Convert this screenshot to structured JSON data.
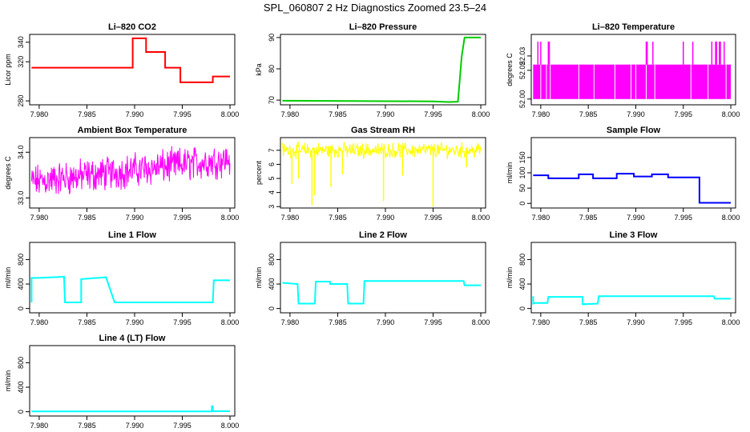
{
  "figure_title": "SPL_060807  2 Hz Diagnostics Zoomed 23.5–24",
  "colors": {
    "red": "#ff0000",
    "green": "#00cc00",
    "magenta": "#ff00ff",
    "yellow": "#ffff00",
    "blue": "#0000ff",
    "cyan": "#00ffff",
    "axis": "#000000"
  },
  "chart_data": [
    {
      "type": "line",
      "title": "Li–820 CO2",
      "ylabel": "Licor ppm",
      "xlim": [
        7.979,
        8.0005
      ],
      "ylim": [
        276,
        348
      ],
      "xticks": [
        "7.980",
        "7.985",
        "7.990",
        "7.995",
        "8.000"
      ],
      "yticks": [
        "280",
        "320",
        "340"
      ],
      "ytick_values": [
        280,
        320,
        340
      ],
      "color_key": "red",
      "x": [
        7.9792,
        7.9898,
        7.9898,
        7.9912,
        7.9912,
        7.9932,
        7.9932,
        7.9948,
        7.9948,
        7.9982,
        7.9982,
        8.0
      ],
      "y": [
        314,
        314,
        344,
        344,
        330,
        330,
        314,
        314,
        299,
        299,
        305,
        305
      ]
    },
    {
      "type": "line",
      "title": "Li–820 Pressure",
      "ylabel": "kPa",
      "xlim": [
        7.979,
        8.0005
      ],
      "ylim": [
        68.5,
        91
      ],
      "xticks": [
        "7.980",
        "7.985",
        "7.990",
        "7.995",
        "8.000"
      ],
      "yticks": [
        "70",
        "80",
        "90"
      ],
      "ytick_values": [
        70,
        80,
        90
      ],
      "color_key": "green",
      "x": [
        7.9792,
        7.995,
        7.9966,
        7.9976,
        7.998,
        7.9983,
        8.0
      ],
      "y": [
        69.8,
        69.6,
        69.4,
        69.5,
        84,
        90,
        90
      ]
    },
    {
      "type": "line",
      "title": "Li–820 Temperature",
      "ylabel": "degrees C",
      "xlim": [
        7.979,
        8.0005
      ],
      "ylim": [
        51.996,
        52.045
      ],
      "xticks": [
        "7.980",
        "7.985",
        "7.990",
        "7.995",
        "8.000"
      ],
      "yticks": [
        "52.00",
        "52.02",
        "52.03"
      ],
      "ytick_values": [
        52.0,
        52.02,
        52.03
      ],
      "color_key": "magenta",
      "levels": [
        52.0,
        52.024,
        52.04
      ],
      "base_x": [
        7.9792,
        8.0
      ],
      "base_y": [
        52.024,
        52.024
      ],
      "spikes_high_x": [
        7.9797,
        7.98,
        7.9808,
        7.9809,
        7.9911,
        7.9912,
        7.9918,
        7.995,
        7.996,
        7.998,
        7.9984,
        7.9985,
        7.9988,
        7.9989,
        7.9993
      ],
      "dropouts_x": [
        7.98,
        7.9806,
        7.981,
        7.984,
        7.9856,
        7.9878,
        7.9895,
        7.99,
        7.9911,
        7.992,
        7.9958,
        7.9976,
        7.9995
      ],
      "spikes_low_x": [
        7.9804,
        7.9843,
        7.9852,
        7.986,
        7.988,
        7.9903,
        7.993,
        7.995,
        7.9965,
        7.9972,
        7.9987,
        7.9997
      ]
    },
    {
      "type": "line",
      "title": "Ambient Box Temperature",
      "ylabel": "degrees C",
      "xlim": [
        7.979,
        8.0005
      ],
      "ylim": [
        32.78,
        34.32
      ],
      "xticks": [
        "7.980",
        "7.985",
        "7.990",
        "7.995",
        "8.000"
      ],
      "yticks": [
        "33.0",
        "34.0"
      ],
      "ytick_values": [
        33.0,
        34.0
      ],
      "color_key": "magenta",
      "trend_x": [
        7.9792,
        8.0
      ],
      "trend_y": [
        33.35,
        33.85
      ],
      "spread": [
        33.0,
        34.25
      ]
    },
    {
      "type": "line",
      "title": "Gas Stream RH",
      "ylabel": "percent",
      "xlim": [
        7.979,
        8.0005
      ],
      "ylim": [
        2.9,
        7.9
      ],
      "xticks": [
        "7.980",
        "7.985",
        "7.990",
        "7.995",
        "8.000"
      ],
      "yticks": [
        "3",
        "4",
        "5",
        "6",
        "7"
      ],
      "ytick_values": [
        3,
        4,
        5,
        6,
        7
      ],
      "color_key": "yellow",
      "mean": 7.0,
      "spread": [
        6.3,
        7.6
      ],
      "dips_x": [
        7.9802,
        7.9809,
        7.9823,
        7.9826,
        7.9843,
        7.9855,
        7.9898,
        7.9918,
        7.995,
        7.9985
      ],
      "dips_y": [
        4.6,
        5.0,
        3.1,
        3.8,
        4.4,
        5.3,
        3.4,
        5.2,
        3.0,
        5.8
      ]
    },
    {
      "type": "line",
      "title": "Sample Flow",
      "ylabel": "ml/min",
      "xlim": [
        7.979,
        8.0005
      ],
      "ylim": [
        -15,
        215
      ],
      "xticks": [
        "7.980",
        "7.985",
        "7.990",
        "7.995",
        "8.000"
      ],
      "yticks": [
        "0",
        "50",
        "100",
        "150"
      ],
      "ytick_values": [
        0,
        50,
        100,
        150
      ],
      "color_key": "blue",
      "x": [
        7.9792,
        7.9808,
        7.9808,
        7.984,
        7.984,
        7.9855,
        7.9855,
        7.988,
        7.988,
        7.9898,
        7.9898,
        7.9917,
        7.9917,
        7.9934,
        7.9934,
        7.9967,
        7.9967,
        8.0
      ],
      "y": [
        92,
        92,
        82,
        82,
        95,
        95,
        82,
        82,
        97,
        97,
        88,
        88,
        95,
        95,
        85,
        85,
        2,
        2
      ]
    },
    {
      "type": "line",
      "title": "Line 1 Flow",
      "ylabel": "ml/min",
      "xlim": [
        7.979,
        8.0005
      ],
      "ylim": [
        -70,
        1080
      ],
      "xticks": [
        "7.980",
        "7.985",
        "7.990",
        "7.995",
        "8.000"
      ],
      "yticks": [
        "0",
        "400",
        "800"
      ],
      "ytick_values": [
        0,
        400,
        800
      ],
      "color_key": "cyan",
      "x": [
        7.9792,
        7.9792,
        7.98,
        7.9826,
        7.9827,
        7.9844,
        7.9844,
        7.987,
        7.9879,
        7.9982,
        7.9983,
        8.0
      ],
      "y": [
        100,
        500,
        500,
        520,
        100,
        100,
        480,
        510,
        100,
        100,
        460,
        460
      ]
    },
    {
      "type": "line",
      "title": "Line 2 Flow",
      "ylabel": "ml/min",
      "xlim": [
        7.979,
        8.0005
      ],
      "ylim": [
        -70,
        1080
      ],
      "xticks": [
        "7.980",
        "7.985",
        "7.990",
        "7.995",
        "8.000"
      ],
      "yticks": [
        "0",
        "400",
        "800"
      ],
      "ytick_values": [
        0,
        400,
        800
      ],
      "color_key": "cyan",
      "x": [
        7.9792,
        7.9808,
        7.9809,
        7.9826,
        7.9827,
        7.9842,
        7.9842,
        7.986,
        7.9861,
        7.9877,
        7.9878,
        7.9982,
        7.9983,
        8.0
      ],
      "y": [
        420,
        400,
        80,
        80,
        440,
        440,
        400,
        400,
        80,
        80,
        450,
        450,
        380,
        380
      ]
    },
    {
      "type": "line",
      "title": "Line 3 Flow",
      "ylabel": "ml/min",
      "xlim": [
        7.979,
        8.0005
      ],
      "ylim": [
        -70,
        1080
      ],
      "xticks": [
        "7.980",
        "7.985",
        "7.990",
        "7.995",
        "8.000"
      ],
      "yticks": [
        "0",
        "400",
        "800"
      ],
      "ytick_values": [
        0,
        400,
        800
      ],
      "color_key": "cyan",
      "x": [
        7.9792,
        7.9792,
        7.9794,
        7.9807,
        7.9808,
        7.9844,
        7.9844,
        7.986,
        7.9861,
        7.9982,
        7.9983,
        8.0
      ],
      "y": [
        200,
        80,
        90,
        90,
        190,
        190,
        70,
        80,
        200,
        200,
        160,
        160
      ]
    },
    {
      "type": "line",
      "title": "Line 4 (LT) Flow",
      "ylabel": "ml/min",
      "xlim": [
        7.979,
        8.0005
      ],
      "ylim": [
        -70,
        1080
      ],
      "xticks": [
        "7.980",
        "7.985",
        "7.990",
        "7.995",
        "8.000"
      ],
      "yticks": [
        "0",
        "400",
        "800"
      ],
      "ytick_values": [
        0,
        400,
        800
      ],
      "color_key": "cyan",
      "x": [
        7.9792,
        7.9981,
        7.9981,
        7.9982,
        7.9982,
        8.0
      ],
      "y": [
        5,
        5,
        90,
        90,
        8,
        8
      ]
    }
  ]
}
